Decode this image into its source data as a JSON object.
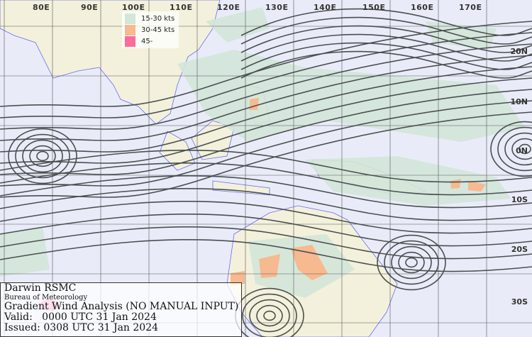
{
  "map": {
    "longitude_labels": [
      "80E",
      "90E",
      "100E",
      "110E",
      "120E",
      "130E",
      "140E",
      "150E",
      "160E",
      "170E"
    ],
    "latitude_labels": [
      "20N",
      "10N",
      "0N",
      "10S",
      "20S",
      "30S"
    ],
    "colors": {
      "ocean": "#e9ecf8",
      "land": "#f3f1db",
      "coast": "#6a6af5",
      "streamline": "#4a4f50",
      "grid": "#555555"
    }
  },
  "legend": {
    "items": [
      {
        "label": "15-30 kts",
        "color": "#d3e6d9"
      },
      {
        "label": "30-45 kts",
        "color": "#f7b98f"
      },
      {
        "label": "45-",
        "color": "#fb6c9c"
      }
    ]
  },
  "info": {
    "center": "Darwin RSMC",
    "agency": "Bureau of Meteorology",
    "product": "Gradient Wind Analysis (NO MANUAL INPUT)",
    "valid": "Valid:   0000 UTC 31 Jan 2024",
    "issued": "Issued: 0308 UTC 31 Jan 2024"
  }
}
